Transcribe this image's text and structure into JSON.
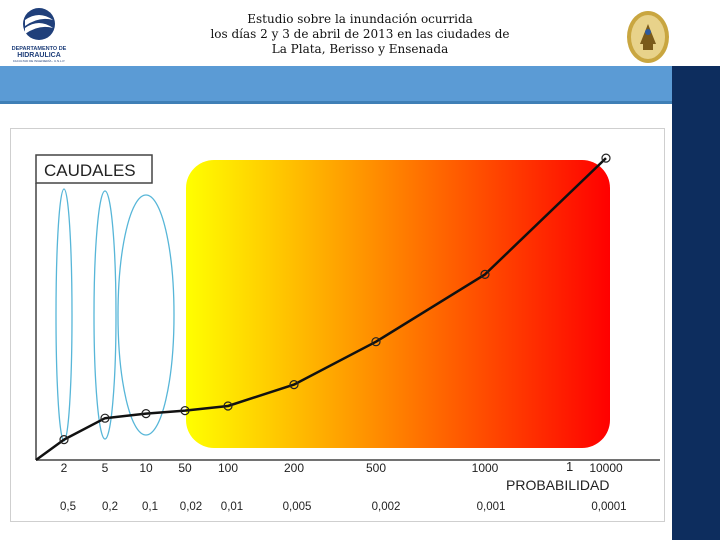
{
  "header": {
    "title_lines": [
      "Estudio sobre la inundación ocurrida",
      "los días 2 y 3 de abril de 2013 en las ciudades de",
      "La Plata, Berisso y Ensenada"
    ],
    "left_logo_text": [
      "DEPARTAMENTO DE",
      "HIDRAULICA",
      "FACULTAD DE INGENIERÍA - U.N.L.P."
    ]
  },
  "colors": {
    "band": "#5b9bd5",
    "sidebar": "#0d2d5e",
    "gradient_start": "#ffff00",
    "gradient_end": "#ff0000",
    "ellipse": "#57b6d8",
    "curve": "#111111"
  },
  "chart_data": {
    "type": "line",
    "title": "CAUDALES",
    "xlabel": "PROBABILIDAD",
    "x_return_period_ticks": [
      "2",
      "5",
      "10",
      "50",
      "100",
      "200",
      "500",
      "1000",
      "10000"
    ],
    "x_probability_ticks": [
      "0,5",
      "0,2",
      "0,1",
      "0,02",
      "0,01",
      "0,005",
      "0,002",
      "0,001",
      "0,0001"
    ],
    "extra_label": "1",
    "x": [
      2,
      5,
      10,
      50,
      100,
      200,
      500,
      1000,
      10000
    ],
    "y_relative": [
      0.06,
      0.13,
      0.145,
      0.155,
      0.17,
      0.24,
      0.38,
      0.6,
      0.98
    ],
    "grid": false,
    "highlight_region": "from 50 to 10000 (yellow to red gradient)",
    "ellipses_at": [
      "2",
      "5",
      "10"
    ]
  }
}
